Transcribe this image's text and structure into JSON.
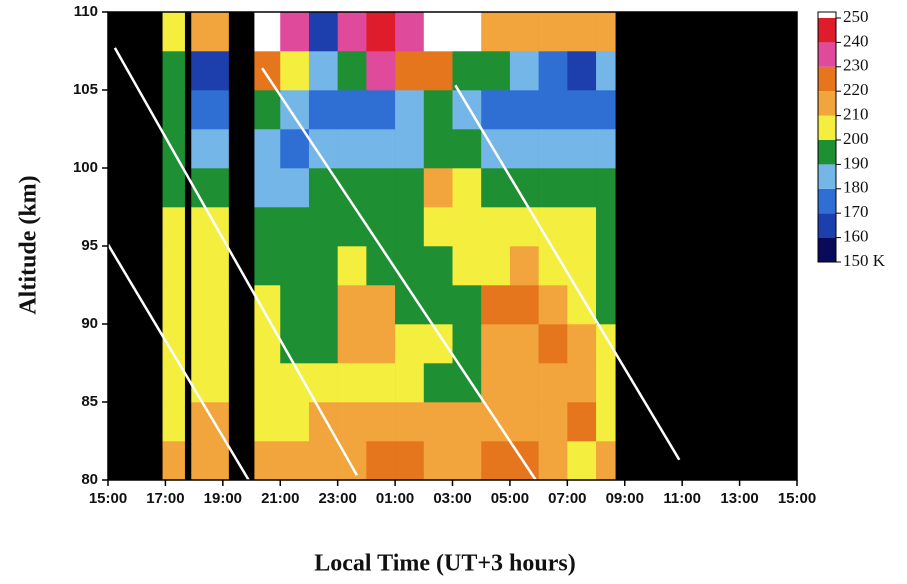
{
  "chart_data": {
    "type": "heatmap",
    "x_label": "Local Time (UT+3 hours)",
    "y_label": "Altitude (km)",
    "xlim": [
      0,
      24
    ],
    "xticks": [
      {
        "value": 0,
        "label": "15:00"
      },
      {
        "value": 2,
        "label": "17:00"
      },
      {
        "value": 4,
        "label": "19:00"
      },
      {
        "value": 6,
        "label": "21:00"
      },
      {
        "value": 8,
        "label": "23:00"
      },
      {
        "value": 10,
        "label": "01:00"
      },
      {
        "value": 12,
        "label": "03:00"
      },
      {
        "value": 14,
        "label": "05:00"
      },
      {
        "value": 16,
        "label": "07:00"
      },
      {
        "value": 18,
        "label": "09:00"
      },
      {
        "value": 20,
        "label": "11:00"
      },
      {
        "value": 22,
        "label": "13:00"
      },
      {
        "value": 24,
        "label": "15:00"
      }
    ],
    "ylim": [
      80,
      110
    ],
    "yticks": [
      80,
      85,
      90,
      95,
      100,
      105,
      110
    ],
    "background": "#000000",
    "x_edges": [
      1.9,
      2.67,
      2.9,
      4.2,
      5.1,
      6,
      7,
      8,
      9,
      10,
      11,
      12,
      13,
      14,
      15,
      16,
      17,
      17.67
    ],
    "y_edges": [
      80,
      82.5,
      85,
      87.5,
      90,
      92.5,
      95,
      97.5,
      100,
      102.5,
      105,
      107.5,
      110
    ],
    "z": [
      [
        215,
        null,
        215,
        null,
        215,
        215,
        215,
        215,
        225,
        225,
        215,
        215,
        225,
        225,
        215,
        205,
        215
      ],
      [
        205,
        null,
        215,
        null,
        205,
        205,
        215,
        215,
        215,
        215,
        215,
        215,
        215,
        215,
        215,
        225,
        205
      ],
      [
        205,
        null,
        205,
        null,
        205,
        205,
        205,
        205,
        205,
        205,
        195,
        195,
        215,
        215,
        215,
        215,
        205
      ],
      [
        205,
        null,
        205,
        null,
        205,
        195,
        195,
        215,
        215,
        205,
        205,
        195,
        215,
        215,
        225,
        215,
        205
      ],
      [
        205,
        null,
        205,
        null,
        205,
        195,
        195,
        215,
        215,
        195,
        195,
        195,
        225,
        225,
        215,
        205,
        195
      ],
      [
        205,
        null,
        205,
        null,
        195,
        195,
        195,
        205,
        195,
        195,
        195,
        205,
        205,
        215,
        205,
        205,
        195
      ],
      [
        205,
        null,
        205,
        null,
        195,
        195,
        195,
        195,
        195,
        195,
        205,
        205,
        205,
        205,
        205,
        205,
        195
      ],
      [
        195,
        null,
        195,
        null,
        185,
        185,
        195,
        195,
        195,
        195,
        215,
        205,
        195,
        195,
        195,
        195,
        195
      ],
      [
        195,
        null,
        185,
        null,
        185,
        175,
        185,
        185,
        185,
        185,
        195,
        195,
        185,
        185,
        185,
        185,
        185
      ],
      [
        195,
        null,
        175,
        null,
        195,
        185,
        175,
        175,
        175,
        185,
        195,
        185,
        175,
        175,
        175,
        175,
        175
      ],
      [
        195,
        null,
        165,
        null,
        225,
        205,
        185,
        195,
        235,
        225,
        225,
        195,
        195,
        185,
        175,
        165,
        185
      ],
      [
        205,
        null,
        215,
        null,
        255,
        235,
        165,
        235,
        245,
        235,
        255,
        255,
        215,
        215,
        215,
        215,
        215
      ]
    ],
    "colorbar": {
      "ticks": [
        {
          "value": 150,
          "label": "150 K"
        },
        160,
        170,
        180,
        190,
        200,
        210,
        220,
        230,
        240,
        250
      ],
      "colors": [
        "#0a0a5a",
        "#1d3fae",
        "#2f6fd4",
        "#74b6e8",
        "#1e8f32",
        "#f4ee3e",
        "#f2a53c",
        "#e6761e",
        "#df4a9b",
        "#df1c2c"
      ],
      "over_color": "#ffffff"
    },
    "lines": [
      {
        "color": "#ffffff",
        "x": [
          0.24,
          8.67
        ],
        "y": [
          107.7,
          80.3
        ]
      },
      {
        "color": "#ffffff",
        "x": [
          0,
          4.9
        ],
        "y": [
          95.1,
          80
        ]
      },
      {
        "color": "#ffffff",
        "x": [
          5.37,
          14.9
        ],
        "y": [
          106.4,
          80
        ]
      },
      {
        "color": "#ffffff",
        "x": [
          12.1,
          19.9
        ],
        "y": [
          105.3,
          81.3
        ]
      }
    ]
  }
}
